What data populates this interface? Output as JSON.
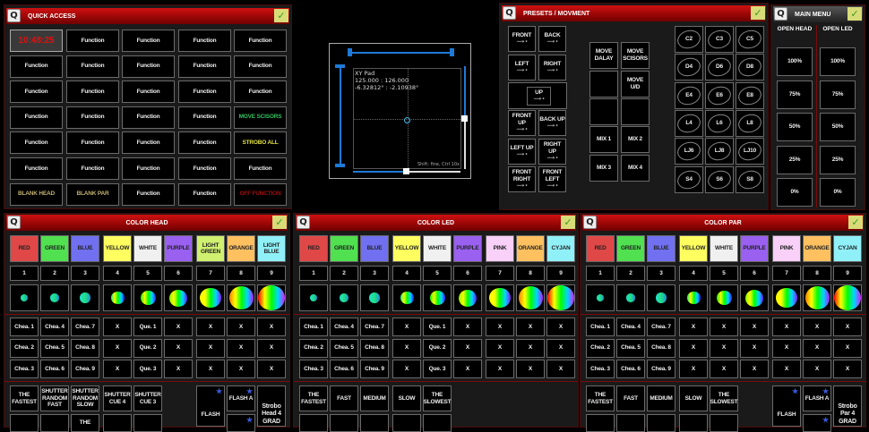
{
  "quick_access": {
    "title": "QUICK ACCESS",
    "clock": "10:48:25",
    "buttons": [
      {
        "label": "10:48:25",
        "type": "clock"
      },
      {
        "label": "Function"
      },
      {
        "label": "Function"
      },
      {
        "label": "Function"
      },
      {
        "label": "Function"
      },
      {
        "label": "Function"
      },
      {
        "label": "Function"
      },
      {
        "label": "Function"
      },
      {
        "label": "Function"
      },
      {
        "label": "Function"
      },
      {
        "label": "Function"
      },
      {
        "label": "Function"
      },
      {
        "label": "Function"
      },
      {
        "label": "Function"
      },
      {
        "label": "Function"
      },
      {
        "label": "Function"
      },
      {
        "label": "Function"
      },
      {
        "label": "Function"
      },
      {
        "label": "Function"
      },
      {
        "label": "MOVE SCISORS",
        "color": "#30c060"
      },
      {
        "label": "Function"
      },
      {
        "label": "Function"
      },
      {
        "label": "Function"
      },
      {
        "label": "Function"
      },
      {
        "label": "STROBO ALL",
        "color": "#e0e040"
      },
      {
        "label": "Function"
      },
      {
        "label": "Function"
      },
      {
        "label": "Function"
      },
      {
        "label": "Function"
      },
      {
        "label": "Function"
      },
      {
        "label": "BLANK HEAD",
        "color": "#c0b070"
      },
      {
        "label": "BLANK PAR",
        "color": "#c0b070"
      },
      {
        "label": "Function"
      },
      {
        "label": "Function"
      },
      {
        "label": "OFF FUNCTION",
        "color": "#a01010"
      }
    ]
  },
  "xy_pad": {
    "title": "XY Pad",
    "values": "125.000 : 126.000",
    "angles": "-6.32812° : -2.10938°",
    "hint": "Shift: fine, Ctrl 10x",
    "x": 125,
    "y": 126,
    "max": 255,
    "accent": "#1e7ad8"
  },
  "presets": {
    "title": "PRESETS / MOVMENT",
    "positions": [
      "FRONT",
      "BACK",
      "LEFT",
      "RIGHT",
      "UP",
      "FRONT UP",
      "BACK UP",
      "LEFT UP",
      "RIGHT UP",
      "FRONT RIGHT",
      "FRONT LEFT"
    ],
    "moves": [
      "MOVE DALAY",
      "MOVE SCISORS",
      "",
      "MOVE U/D",
      "",
      "",
      "MIX 1",
      "MIX 2",
      "MIX 3",
      "MIX 4"
    ],
    "shapes": [
      "C2",
      "C3",
      "C5",
      "D4",
      "D6",
      "D8",
      "E4",
      "E6",
      "E8",
      "L4",
      "L6",
      "L8",
      "LJ6",
      "LJ8",
      "LJ10",
      "S4",
      "S6",
      "S8"
    ]
  },
  "main_menu": {
    "title": "MAIN MENU",
    "columns": [
      {
        "header": "OPEN HEAD",
        "items": [
          "100%",
          "75%",
          "50%",
          "25%",
          "0%"
        ]
      },
      {
        "header": "OPEN LED",
        "items": [
          "100%",
          "75%",
          "50%",
          "25%",
          "0%"
        ]
      }
    ]
  },
  "color_panels": [
    {
      "title": "COLOR HEAD",
      "colors": [
        {
          "label": "RED",
          "color": "#e04848"
        },
        {
          "label": "GREEN",
          "color": "#50e050"
        },
        {
          "label": "BLUE",
          "color": "#7070f0"
        },
        {
          "label": "YELLOW",
          "color": "#ffff60"
        },
        {
          "label": "WHITE",
          "color": "#f0f0f0"
        },
        {
          "label": "PURPLE",
          "color": "#9a60f0"
        },
        {
          "label": "LIGHT GREEN",
          "color": "#d0f070"
        },
        {
          "label": "ORANGE",
          "color": "#ffc060"
        },
        {
          "label": "LIGHT BLUE",
          "color": "#90f0f8"
        }
      ],
      "numbers": [
        "1",
        "2",
        "3",
        "4",
        "5",
        "6",
        "7",
        "8",
        "9"
      ],
      "rows": [
        [
          "Chea. 1",
          "Chea. 4",
          "Chea. 7",
          "X",
          "Que. 1",
          "X",
          "X",
          "X",
          "X"
        ],
        [
          "Chea. 2",
          "Chea. 5",
          "Chea. 8",
          "X",
          "Que. 2",
          "X",
          "X",
          "X",
          "X"
        ],
        [
          "Chea. 3",
          "Chea. 6",
          "Chea. 9",
          "X",
          "Que. 3",
          "X",
          "X",
          "X",
          "X"
        ]
      ],
      "effects": [
        "THE FASTEST",
        "SHUTTER RANDOM FAST",
        "SHUTTER RANDOM SLOW",
        "SHUTTER CUE 4",
        "SHUTTER CUE 3"
      ],
      "effects_row2": [
        "",
        "",
        "THE",
        "",
        ""
      ],
      "flash": "FLASH",
      "flash_a": "FLASH A",
      "strobo": "Strobo Head 4 GRAD"
    },
    {
      "title": "COLOR LED",
      "colors": [
        {
          "label": "RED",
          "color": "#e04848"
        },
        {
          "label": "GREEN",
          "color": "#50e050"
        },
        {
          "label": "BLUE",
          "color": "#7070f0"
        },
        {
          "label": "YELLOW",
          "color": "#ffff60"
        },
        {
          "label": "WHITE",
          "color": "#f0f0f0"
        },
        {
          "label": "PURPLE",
          "color": "#9a60f0"
        },
        {
          "label": "PINK",
          "color": "#f8d0f8"
        },
        {
          "label": "ORANGE",
          "color": "#ffc060"
        },
        {
          "label": "CYJAN",
          "color": "#90f0f8"
        }
      ],
      "numbers": [
        "1",
        "2",
        "3",
        "4",
        "5",
        "6",
        "7",
        "8",
        "9"
      ],
      "rows": [
        [
          "Chea. 1",
          "Chea. 4",
          "Chea. 7",
          "X",
          "Que. 1",
          "X",
          "X",
          "X",
          "X"
        ],
        [
          "Chea. 2",
          "Chea. 5",
          "Chea. 8",
          "X",
          "Que. 2",
          "X",
          "X",
          "X",
          "X"
        ],
        [
          "Chea. 3",
          "Chea. 6",
          "Chea. 9",
          "X",
          "Que. 3",
          "X",
          "X",
          "X",
          "X"
        ]
      ],
      "effects": [
        "THE FASTEST",
        "FAST",
        "MEDIUM",
        "SLOW",
        "THE SLOWEST"
      ],
      "effects_row2": [
        "",
        "",
        "",
        "",
        ""
      ]
    },
    {
      "title": "COLOR PAR",
      "colors": [
        {
          "label": "RED",
          "color": "#e04848"
        },
        {
          "label": "GREEN",
          "color": "#50e050"
        },
        {
          "label": "BLUE",
          "color": "#7070f0"
        },
        {
          "label": "YELLOW",
          "color": "#ffff60"
        },
        {
          "label": "WHITE",
          "color": "#f0f0f0"
        },
        {
          "label": "PURPLE",
          "color": "#9a60f0"
        },
        {
          "label": "PINK",
          "color": "#f8d0f8"
        },
        {
          "label": "ORANGE",
          "color": "#ffc060"
        },
        {
          "label": "CYJAN",
          "color": "#90f0f8"
        }
      ],
      "numbers": [
        "1",
        "2",
        "3",
        "4",
        "5",
        "6",
        "7",
        "8",
        "9"
      ],
      "rows": [
        [
          "Chea. 1",
          "Chea. 4",
          "Chea. 7",
          "X",
          "X",
          "X",
          "X",
          "X",
          "X"
        ],
        [
          "Chea. 2",
          "Chea. 5",
          "Chea. 8",
          "X",
          "X",
          "X",
          "X",
          "X",
          "X"
        ],
        [
          "Chea. 3",
          "Chea. 6",
          "Chea. 9",
          "X",
          "X",
          "X",
          "X",
          "X",
          "X"
        ]
      ],
      "effects": [
        "THE FASTEST",
        "FAST",
        "MEDIUM",
        "SLOW",
        "THE SLOWEST"
      ],
      "effects_row2": [
        "",
        "",
        "",
        "",
        ""
      ],
      "flash": "FLASH",
      "flash_a": "FLASH A",
      "strobo": "Strobo Par 4 GRAD"
    }
  ]
}
